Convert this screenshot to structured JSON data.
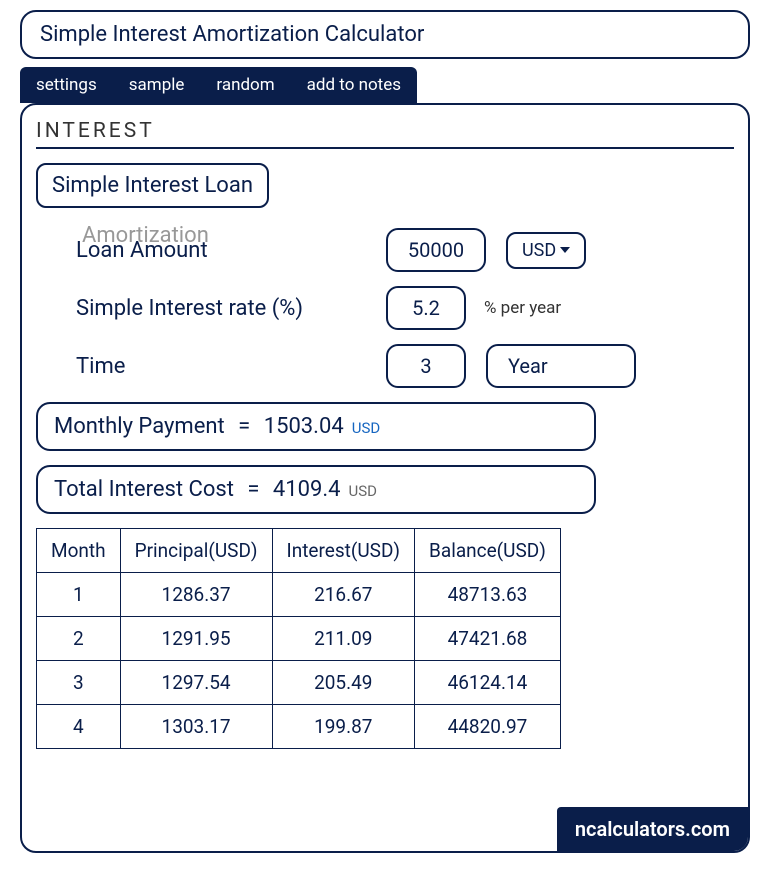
{
  "title": "Simple Interest Amortization Calculator",
  "tabs": [
    "settings",
    "sample",
    "random",
    "add to notes"
  ],
  "section": "INTEREST",
  "loan_type": "Simple Interest Loan",
  "ghost": "Amortization",
  "inputs": {
    "loan_amount": {
      "label": "Loan Amount",
      "value": "50000",
      "currency": "USD"
    },
    "rate": {
      "label": "Simple Interest rate (%)",
      "value": "5.2",
      "suffix": "% per year"
    },
    "time": {
      "label": "Time",
      "value": "3",
      "unit": "Year"
    }
  },
  "results": {
    "monthly": {
      "label": "Monthly Payment",
      "value": "1503.04",
      "currency": "USD"
    },
    "total_interest": {
      "label": "Total Interest Cost",
      "value": "4109.4",
      "currency": "USD"
    }
  },
  "table": {
    "columns": [
      "Month",
      "Principal(USD)",
      "Interest(USD)",
      "Balance(USD)"
    ],
    "rows": [
      [
        "1",
        "1286.37",
        "216.67",
        "48713.63"
      ],
      [
        "2",
        "1291.95",
        "211.09",
        "47421.68"
      ],
      [
        "3",
        "1297.54",
        "205.49",
        "46124.14"
      ],
      [
        "4",
        "1303.17",
        "199.87",
        "44820.97"
      ]
    ]
  },
  "brand": "ncalculators.com",
  "colors": {
    "primary": "#0a1e4a",
    "accent": "#1565c0",
    "bg": "#ffffff"
  }
}
